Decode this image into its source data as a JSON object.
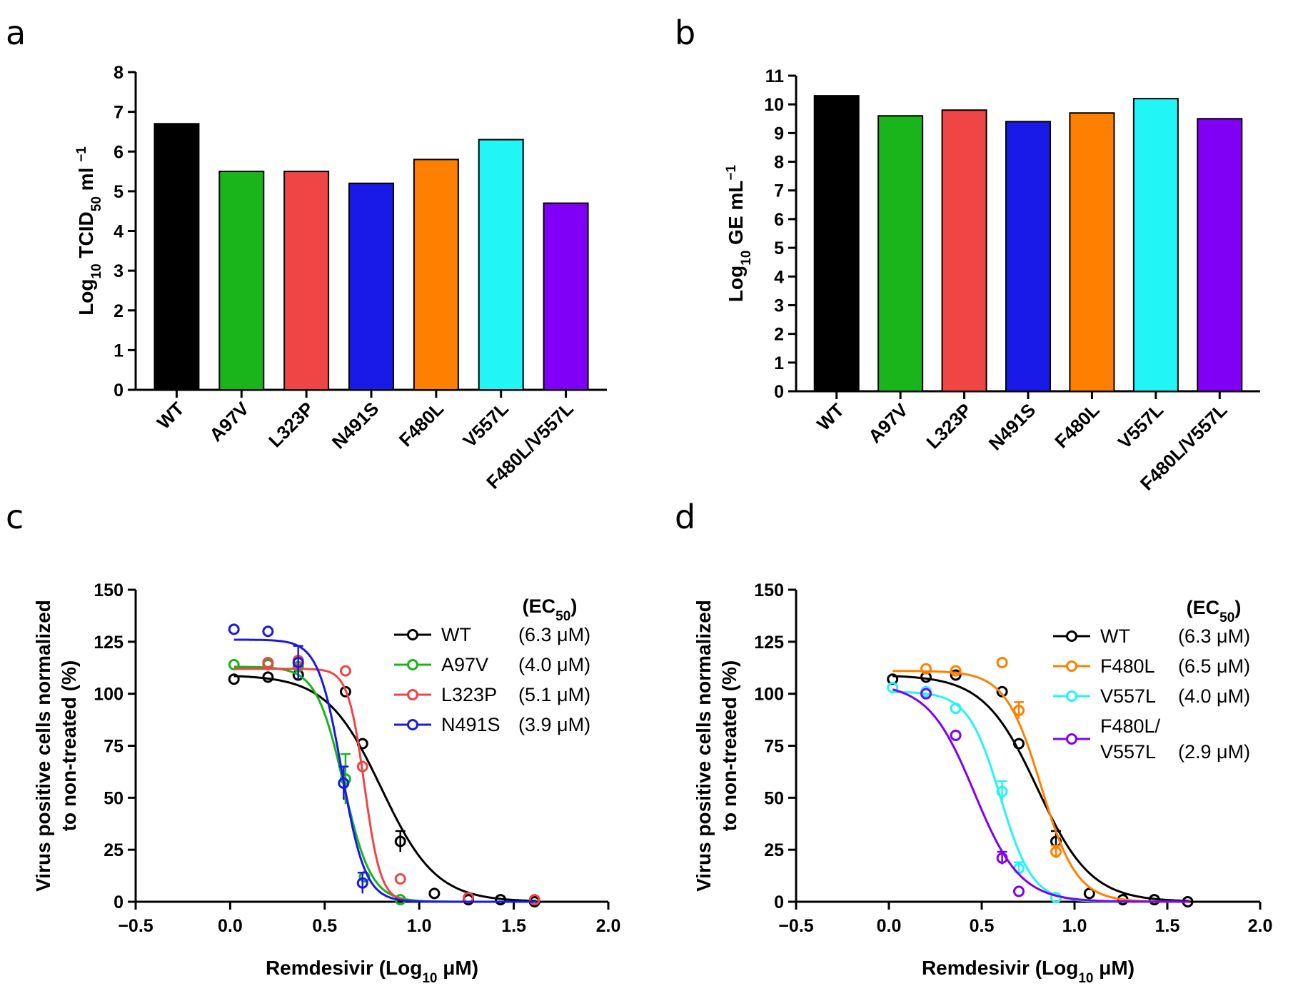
{
  "panels": [
    "a",
    "b",
    "c",
    "d"
  ],
  "colors": {
    "WT": "#000000",
    "A97V": "#1ab51a",
    "L323P": "#f04545",
    "N491S": "#1a1ae8",
    "F480L": "#ff8000",
    "V557L": "#22f5f5",
    "F480L/V557L": "#8000f5"
  },
  "chart_data": [
    {
      "panel": "a",
      "type": "bar",
      "categories": [
        "WT",
        "A97V",
        "L323P",
        "N491S",
        "F480L",
        "V557L",
        "F480L/V557L"
      ],
      "values": [
        6.7,
        5.5,
        5.5,
        5.2,
        5.8,
        6.3,
        4.7
      ],
      "ylim": [
        0,
        8
      ],
      "yticks": [
        "0",
        "1",
        "2",
        "3",
        "4",
        "5",
        "6",
        "7",
        "8"
      ],
      "ylabel": {
        "main": "Log",
        "sub": "10",
        "mid": " TCID",
        "sub2": "50",
        "tail": " ml ",
        "sup": "−1"
      },
      "xlabel": ""
    },
    {
      "panel": "b",
      "type": "bar",
      "categories": [
        "WT",
        "A97V",
        "L323P",
        "N491S",
        "F480L",
        "V557L",
        "F480L/V557L"
      ],
      "values": [
        10.3,
        9.6,
        9.8,
        9.4,
        9.7,
        10.2,
        9.5
      ],
      "ylim": [
        0,
        11
      ],
      "yticks": [
        "0",
        "1",
        "2",
        "3",
        "4",
        "5",
        "6",
        "7",
        "8",
        "9",
        "10",
        "11"
      ],
      "ylabel": {
        "main": "Log",
        "sub": "10",
        "mid": " GE mL",
        "sup": "−1"
      },
      "xlabel": ""
    },
    {
      "panel": "c",
      "type": "line",
      "xlim": [
        -0.5,
        2.0
      ],
      "ylim": [
        0,
        150
      ],
      "xticks": [
        "−0.5",
        "0.0",
        "0.5",
        "1.0",
        "1.5",
        "2.0"
      ],
      "yticks": [
        "0",
        "25",
        "50",
        "75",
        "100",
        "125",
        "150"
      ],
      "xlabel": {
        "main": "Remdesivir (Log",
        "sub": "10",
        "tail": " μM)"
      },
      "ylabel": [
        "Virus positive cells normalized",
        "to non-treated (%)"
      ],
      "legend_title": {
        "main": "(EC",
        "sub": "50",
        "tail": ")"
      },
      "series": [
        {
          "name": "WT",
          "ec50": "(6.3 μM)",
          "color": "#000000",
          "top": 109,
          "logec50": 0.8,
          "hill": 3.0,
          "x": [
            0.02,
            0.2,
            0.36,
            0.61,
            0.7,
            0.9,
            1.08,
            1.26,
            1.43,
            1.61
          ],
          "y": [
            107,
            108,
            109,
            101,
            76,
            29,
            4,
            1,
            1,
            0
          ],
          "err": [
            0,
            0,
            0,
            0,
            0,
            5,
            0,
            0,
            0,
            0
          ]
        },
        {
          "name": "A97V",
          "ec50": "(4.0 μM)",
          "color": "#1ab51a",
          "top": 113,
          "logec50": 0.6,
          "hill": 6.0,
          "x": [
            0.02,
            0.2,
            0.36,
            0.61,
            0.71,
            0.9
          ],
          "y": [
            114,
            114,
            113,
            59,
            12,
            1
          ],
          "err": [
            0,
            0,
            0,
            12,
            0,
            0
          ]
        },
        {
          "name": "L323P",
          "ec50": "(5.1 μM)",
          "color": "#f04545",
          "top": 112,
          "logec50": 0.71,
          "hill": 10.0,
          "x": [
            0.2,
            0.36,
            0.61,
            0.7,
            0.9,
            1.26,
            1.61
          ],
          "y": [
            115,
            116,
            111,
            65,
            11,
            2,
            1
          ],
          "err": [
            0,
            0,
            0,
            0,
            0,
            0,
            0
          ]
        },
        {
          "name": "N491S",
          "ec50": "(3.9 μM)",
          "color": "#1a1ae8",
          "top": 126,
          "logec50": 0.59,
          "hill": 7.0,
          "x": [
            0.02,
            0.2,
            0.36,
            0.6,
            0.7
          ],
          "y": [
            131,
            130,
            115,
            57,
            9
          ],
          "err": [
            0,
            0,
            8,
            8,
            5
          ]
        }
      ]
    },
    {
      "panel": "d",
      "type": "line",
      "xlim": [
        -0.5,
        2.0
      ],
      "ylim": [
        0,
        150
      ],
      "xticks": [
        "−0.5",
        "0.0",
        "0.5",
        "1.0",
        "1.5",
        "2.0"
      ],
      "yticks": [
        "0",
        "25",
        "50",
        "75",
        "100",
        "125",
        "150"
      ],
      "xlabel": {
        "main": "Remdesivir (Log",
        "sub": "10",
        "tail": " μM)"
      },
      "ylabel": [
        "Virus positive cells normalized",
        "to non-treated (%)"
      ],
      "legend_title": {
        "main": "(EC",
        "sub": "50",
        "tail": ")"
      },
      "series": [
        {
          "name": "WT",
          "ec50": "(6.3 μM)",
          "color": "#000000",
          "top": 109,
          "logec50": 0.8,
          "hill": 3.0,
          "x": [
            0.02,
            0.2,
            0.36,
            0.61,
            0.7,
            0.9,
            1.08,
            1.26,
            1.43,
            1.61
          ],
          "y": [
            107,
            108,
            109,
            101,
            76,
            29,
            4,
            1,
            1,
            0
          ],
          "err": [
            0,
            0,
            0,
            0,
            0,
            5,
            0,
            0,
            0,
            0
          ]
        },
        {
          "name": "F480L",
          "ec50": "(6.5 μM)",
          "color": "#ff8000",
          "top": 111,
          "logec50": 0.82,
          "hill": 4.5,
          "x": [
            0.2,
            0.36,
            0.61,
            0.7,
            0.9
          ],
          "y": [
            112,
            111,
            115,
            92,
            24
          ],
          "err": [
            0,
            0,
            0,
            4,
            3
          ]
        },
        {
          "name": "V557L",
          "ec50": "(4.0 μM)",
          "color": "#22f5f5",
          "top": 101,
          "logec50": 0.6,
          "hill": 5.0,
          "x": [
            0.02,
            0.2,
            0.36,
            0.61,
            0.7,
            0.9
          ],
          "y": [
            103,
            101,
            93,
            53,
            16,
            2
          ],
          "err": [
            0,
            0,
            0,
            5,
            3,
            0
          ]
        },
        {
          "name": "F480L/\nV557L",
          "ec50": "(2.9 μM)",
          "color": "#8000f5",
          "top": 105,
          "logec50": 0.46,
          "hill": 3.5,
          "x": [
            0.2,
            0.36,
            0.61,
            0.7
          ],
          "y": [
            100,
            80,
            21,
            5
          ],
          "err": [
            0,
            0,
            3,
            0
          ]
        }
      ]
    }
  ]
}
